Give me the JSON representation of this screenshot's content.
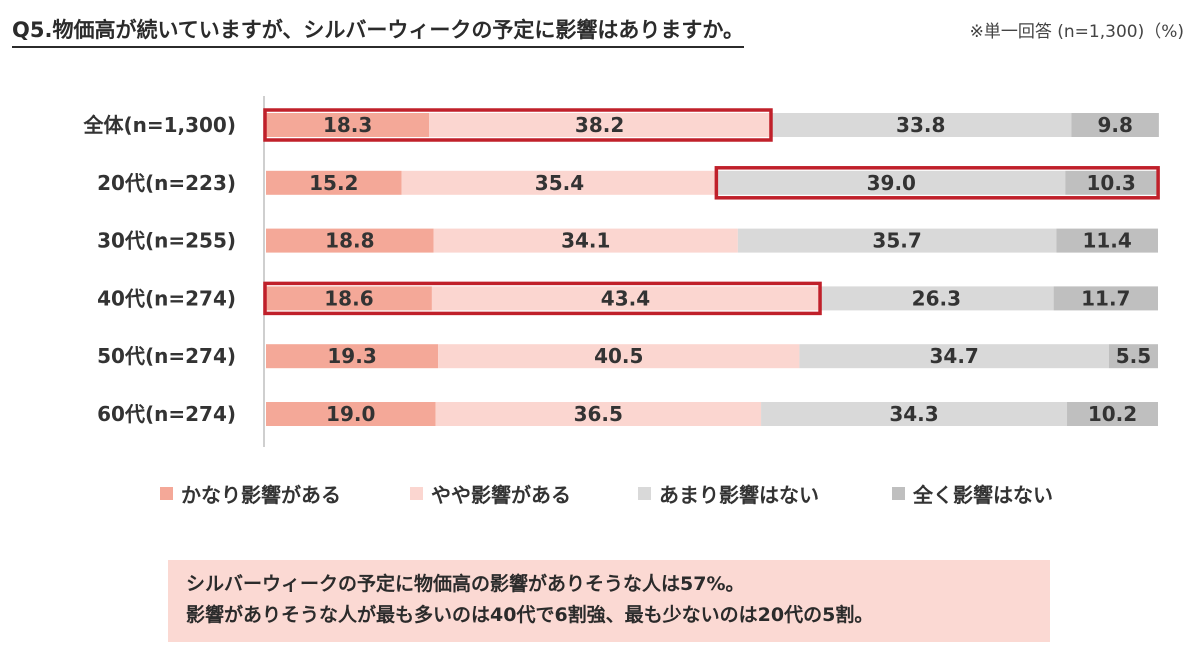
{
  "header": {
    "title": "Q5.物価高が続いていますが、シルバーウィークの予定に影響はありますか。",
    "note": "※単一回答 (n=1,300)（%)"
  },
  "chart_data": {
    "type": "bar",
    "orientation": "horizontal",
    "stacked": true,
    "percent_stacked": true,
    "xlim": [
      0,
      100
    ],
    "categories": [
      "全体(n=1,300)",
      "20代(n=223)",
      "30代(n=255)",
      "40代(n=274)",
      "50代(n=274)",
      "60代(n=274)"
    ],
    "series": [
      {
        "name": "かなり影響がある",
        "color": "#f4a898",
        "values": [
          18.3,
          15.2,
          18.8,
          18.6,
          19.3,
          19.0
        ]
      },
      {
        "name": "やや影響がある",
        "color": "#fbd6d0",
        "values": [
          38.2,
          35.4,
          34.1,
          43.4,
          40.5,
          36.5
        ]
      },
      {
        "name": "あまり影響はない",
        "color": "#d9d9d9",
        "values": [
          33.8,
          39.0,
          35.7,
          26.3,
          34.7,
          34.3
        ]
      },
      {
        "name": "全く影響はない",
        "color": "#bfbfbf",
        "values": [
          9.8,
          10.3,
          11.4,
          11.7,
          5.5,
          10.2
        ]
      }
    ],
    "highlights": [
      {
        "row": 0,
        "series": [
          0,
          1
        ],
        "color": "#c0202a"
      },
      {
        "row": 1,
        "series": [
          2,
          3
        ],
        "color": "#c0202a"
      },
      {
        "row": 3,
        "series": [
          0,
          1
        ],
        "color": "#c0202a"
      }
    ],
    "legend_position": "bottom",
    "grid": false
  },
  "summary": {
    "line1": "シルバーウィークの予定に物価高の影響がありそうな人は57%。",
    "line2": "影響がありそうな人が最も多いのは40代で6割強、最も少ないのは20代の5割。"
  }
}
